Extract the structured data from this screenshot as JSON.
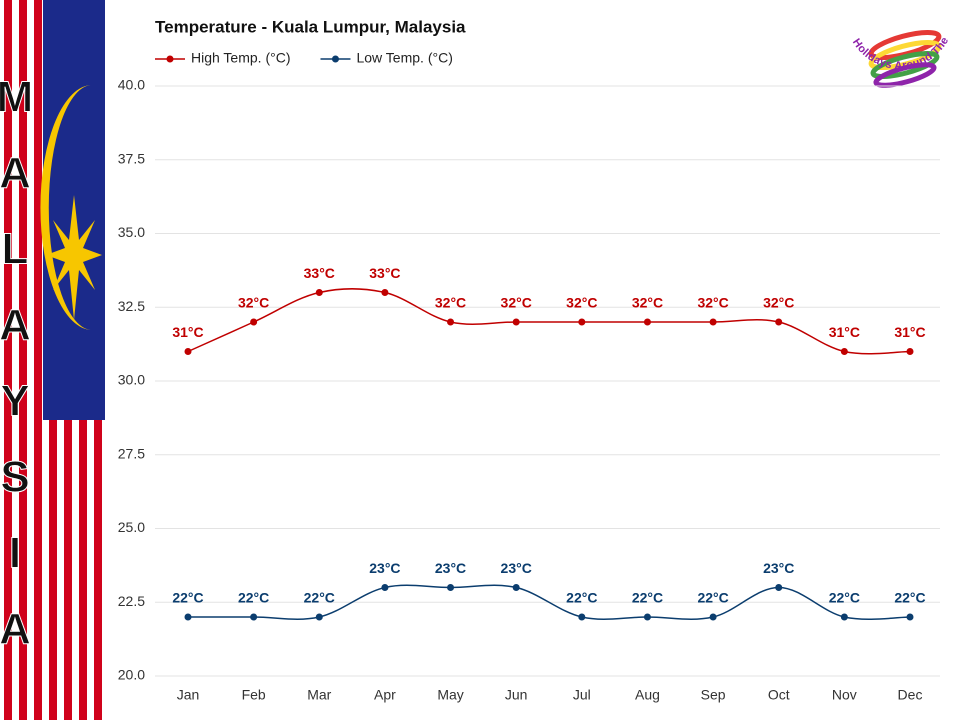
{
  "chart_data": {
    "type": "line",
    "title": "Temperature - Kuala Lumpur, Malaysia",
    "side_banner": [
      "M",
      "A",
      "L",
      "A",
      "Y",
      "S",
      "I",
      "A"
    ],
    "logo_text": "Holidays Around The World",
    "categories": [
      "Jan",
      "Feb",
      "Mar",
      "Apr",
      "May",
      "Jun",
      "Jul",
      "Aug",
      "Sep",
      "Oct",
      "Nov",
      "Dec"
    ],
    "series": [
      {
        "name": "High Temp. (°C)",
        "color": "#c00000",
        "values": [
          31,
          32,
          33,
          33,
          32,
          32,
          32,
          32,
          32,
          32,
          31,
          31
        ],
        "value_labels": [
          "31°C",
          "32°C",
          "33°C",
          "33°C",
          "32°C",
          "32°C",
          "32°C",
          "32°C",
          "32°C",
          "32°C",
          "31°C",
          "31°C"
        ]
      },
      {
        "name": "Low Temp. (°C)",
        "color": "#0b3d6e",
        "values": [
          22,
          22,
          22,
          23,
          23,
          23,
          22,
          22,
          22,
          23,
          22,
          22
        ],
        "value_labels": [
          "22°C",
          "22°C",
          "22°C",
          "23°C",
          "23°C",
          "23°C",
          "22°C",
          "22°C",
          "22°C",
          "23°C",
          "22°C",
          "22°C"
        ]
      }
    ],
    "ylim": [
      20,
      40
    ],
    "yticks": [
      {
        "value": 20,
        "label": "20.0"
      },
      {
        "value": 22.5,
        "label": "22.5"
      },
      {
        "value": 25,
        "label": "25.0"
      },
      {
        "value": 27.5,
        "label": "27.5"
      },
      {
        "value": 30,
        "label": "30.0"
      },
      {
        "value": 32.5,
        "label": "32.5"
      },
      {
        "value": 35,
        "label": "35.0"
      },
      {
        "value": 37.5,
        "label": "37.5"
      },
      {
        "value": 40,
        "label": "40.0"
      }
    ],
    "grid": true,
    "legend": "top-left"
  }
}
